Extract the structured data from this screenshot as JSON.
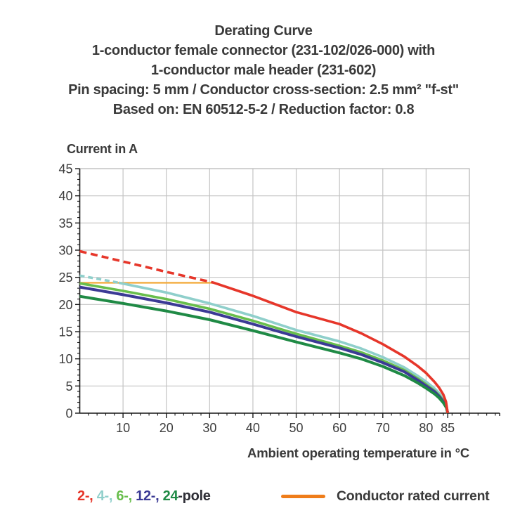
{
  "title": {
    "lines": [
      "Derating Curve",
      "1-conductor female connector (231-102/026-000) with",
      "1-conductor male header (231-602)",
      "Pin spacing: 5 mm / Conductor cross-section: 2.5 mm² \"f-st\"",
      "Based on: EN 60512-5-2 / Reduction factor: 0.8"
    ]
  },
  "legend": {
    "pole_segments": [
      {
        "text": "2-,",
        "color": "#E6362A"
      },
      {
        "text": " 4-,",
        "color": "#8FCFCB"
      },
      {
        "text": " 6-,",
        "color": "#68BE4C"
      },
      {
        "text": " 12-,",
        "color": "#3B3A95"
      },
      {
        "text": " 24",
        "color": "#1F8A45"
      },
      {
        "text": "-pole",
        "color": "#2E2E36"
      }
    ],
    "rated_current": {
      "label": "Conductor rated current",
      "swatch_color": "#EF7D1A"
    }
  },
  "chart_data": {
    "type": "line",
    "title": "Derating Curve",
    "xlabel": "Ambient operating temperature in °C",
    "ylabel": "Current in A",
    "xlim": [
      0,
      90
    ],
    "ylim": [
      0,
      45
    ],
    "x_axis_end": 97,
    "x_major_ticks": [
      10,
      20,
      30,
      40,
      50,
      60,
      70,
      80,
      85
    ],
    "x_gridlines": [
      10,
      20,
      30,
      40,
      50,
      60,
      70,
      80
    ],
    "y_ticks": [
      0,
      5,
      10,
      15,
      20,
      25,
      30,
      35,
      40,
      45
    ],
    "x_minor_step": 2,
    "y_minor_step": 1,
    "grid": true,
    "legend_position": "bottom",
    "style": {
      "grid_color": "#C4C4C4",
      "border_color": "#B5B5B5",
      "axis_color": "#1A1A1A",
      "text_color": "#3C3C3C"
    },
    "series": [
      {
        "name": "Conductor rated current",
        "color": "#F3AC3F",
        "width": 2.4,
        "dash_until": null,
        "points": [
          [
            0,
            24
          ],
          [
            31,
            24
          ]
        ]
      },
      {
        "name": "4-pole",
        "color": "#8FCFCB",
        "width": 3.6,
        "dash_until": 9,
        "dash": "7 5",
        "points": [
          [
            0,
            25.3
          ],
          [
            5,
            24.6
          ],
          [
            9,
            24.0
          ],
          [
            10,
            23.85
          ],
          [
            20,
            22.2
          ],
          [
            30,
            20.2
          ],
          [
            40,
            17.9
          ],
          [
            50,
            15.3
          ],
          [
            60,
            13.2
          ],
          [
            65,
            11.9
          ],
          [
            70,
            10.3
          ],
          [
            75,
            8.4
          ],
          [
            78,
            6.9
          ],
          [
            80,
            5.8
          ],
          [
            82,
            4.5
          ],
          [
            83,
            3.7
          ],
          [
            84,
            2.6
          ],
          [
            84.7,
            1.4
          ],
          [
            85,
            0
          ]
        ]
      },
      {
        "name": "6-pole",
        "color": "#68BE4C",
        "width": 3.6,
        "dash_until": null,
        "points": [
          [
            0,
            23.9
          ],
          [
            10,
            22.5
          ],
          [
            20,
            21.0
          ],
          [
            30,
            19.2
          ],
          [
            40,
            17.0
          ],
          [
            50,
            14.6
          ],
          [
            60,
            12.4
          ],
          [
            65,
            11.2
          ],
          [
            70,
            9.7
          ],
          [
            75,
            7.9
          ],
          [
            78,
            6.4
          ],
          [
            80,
            5.3
          ],
          [
            82,
            4.1
          ],
          [
            83,
            3.3
          ],
          [
            84,
            2.3
          ],
          [
            84.7,
            1.2
          ],
          [
            85,
            0
          ]
        ]
      },
      {
        "name": "12-pole",
        "color": "#3B3A95",
        "width": 4,
        "dash_until": null,
        "points": [
          [
            0,
            23.2
          ],
          [
            10,
            21.8
          ],
          [
            20,
            20.3
          ],
          [
            30,
            18.6
          ],
          [
            40,
            16.4
          ],
          [
            50,
            14.1
          ],
          [
            60,
            12.0
          ],
          [
            65,
            10.8
          ],
          [
            70,
            9.3
          ],
          [
            75,
            7.6
          ],
          [
            78,
            6.1
          ],
          [
            80,
            5.0
          ],
          [
            82,
            3.9
          ],
          [
            83,
            3.1
          ],
          [
            84,
            2.1
          ],
          [
            84.7,
            1.1
          ],
          [
            85,
            0
          ]
        ]
      },
      {
        "name": "24-pole",
        "color": "#1F8A45",
        "width": 4,
        "dash_until": null,
        "points": [
          [
            0,
            21.5
          ],
          [
            10,
            20.2
          ],
          [
            20,
            18.8
          ],
          [
            30,
            17.2
          ],
          [
            40,
            15.2
          ],
          [
            50,
            13.1
          ],
          [
            60,
            11.1
          ],
          [
            65,
            10.0
          ],
          [
            70,
            8.6
          ],
          [
            75,
            6.9
          ],
          [
            78,
            5.6
          ],
          [
            80,
            4.6
          ],
          [
            82,
            3.5
          ],
          [
            83,
            2.8
          ],
          [
            84,
            1.9
          ],
          [
            84.7,
            1.0
          ],
          [
            85,
            0
          ]
        ]
      },
      {
        "name": "2-pole",
        "color": "#E6362A",
        "width": 3.6,
        "dash_until": 31,
        "dash": "10 6",
        "points": [
          [
            0,
            29.8
          ],
          [
            10,
            27.9
          ],
          [
            20,
            26.0
          ],
          [
            30,
            24.2
          ],
          [
            31,
            24.0
          ],
          [
            40,
            21.6
          ],
          [
            50,
            18.6
          ],
          [
            55,
            17.5
          ],
          [
            60,
            16.4
          ],
          [
            65,
            14.7
          ],
          [
            70,
            12.7
          ],
          [
            75,
            10.4
          ],
          [
            78,
            8.7
          ],
          [
            80,
            7.4
          ],
          [
            82,
            5.7
          ],
          [
            83,
            4.7
          ],
          [
            84,
            3.4
          ],
          [
            84.6,
            2.1
          ],
          [
            85,
            0
          ]
        ]
      }
    ]
  }
}
